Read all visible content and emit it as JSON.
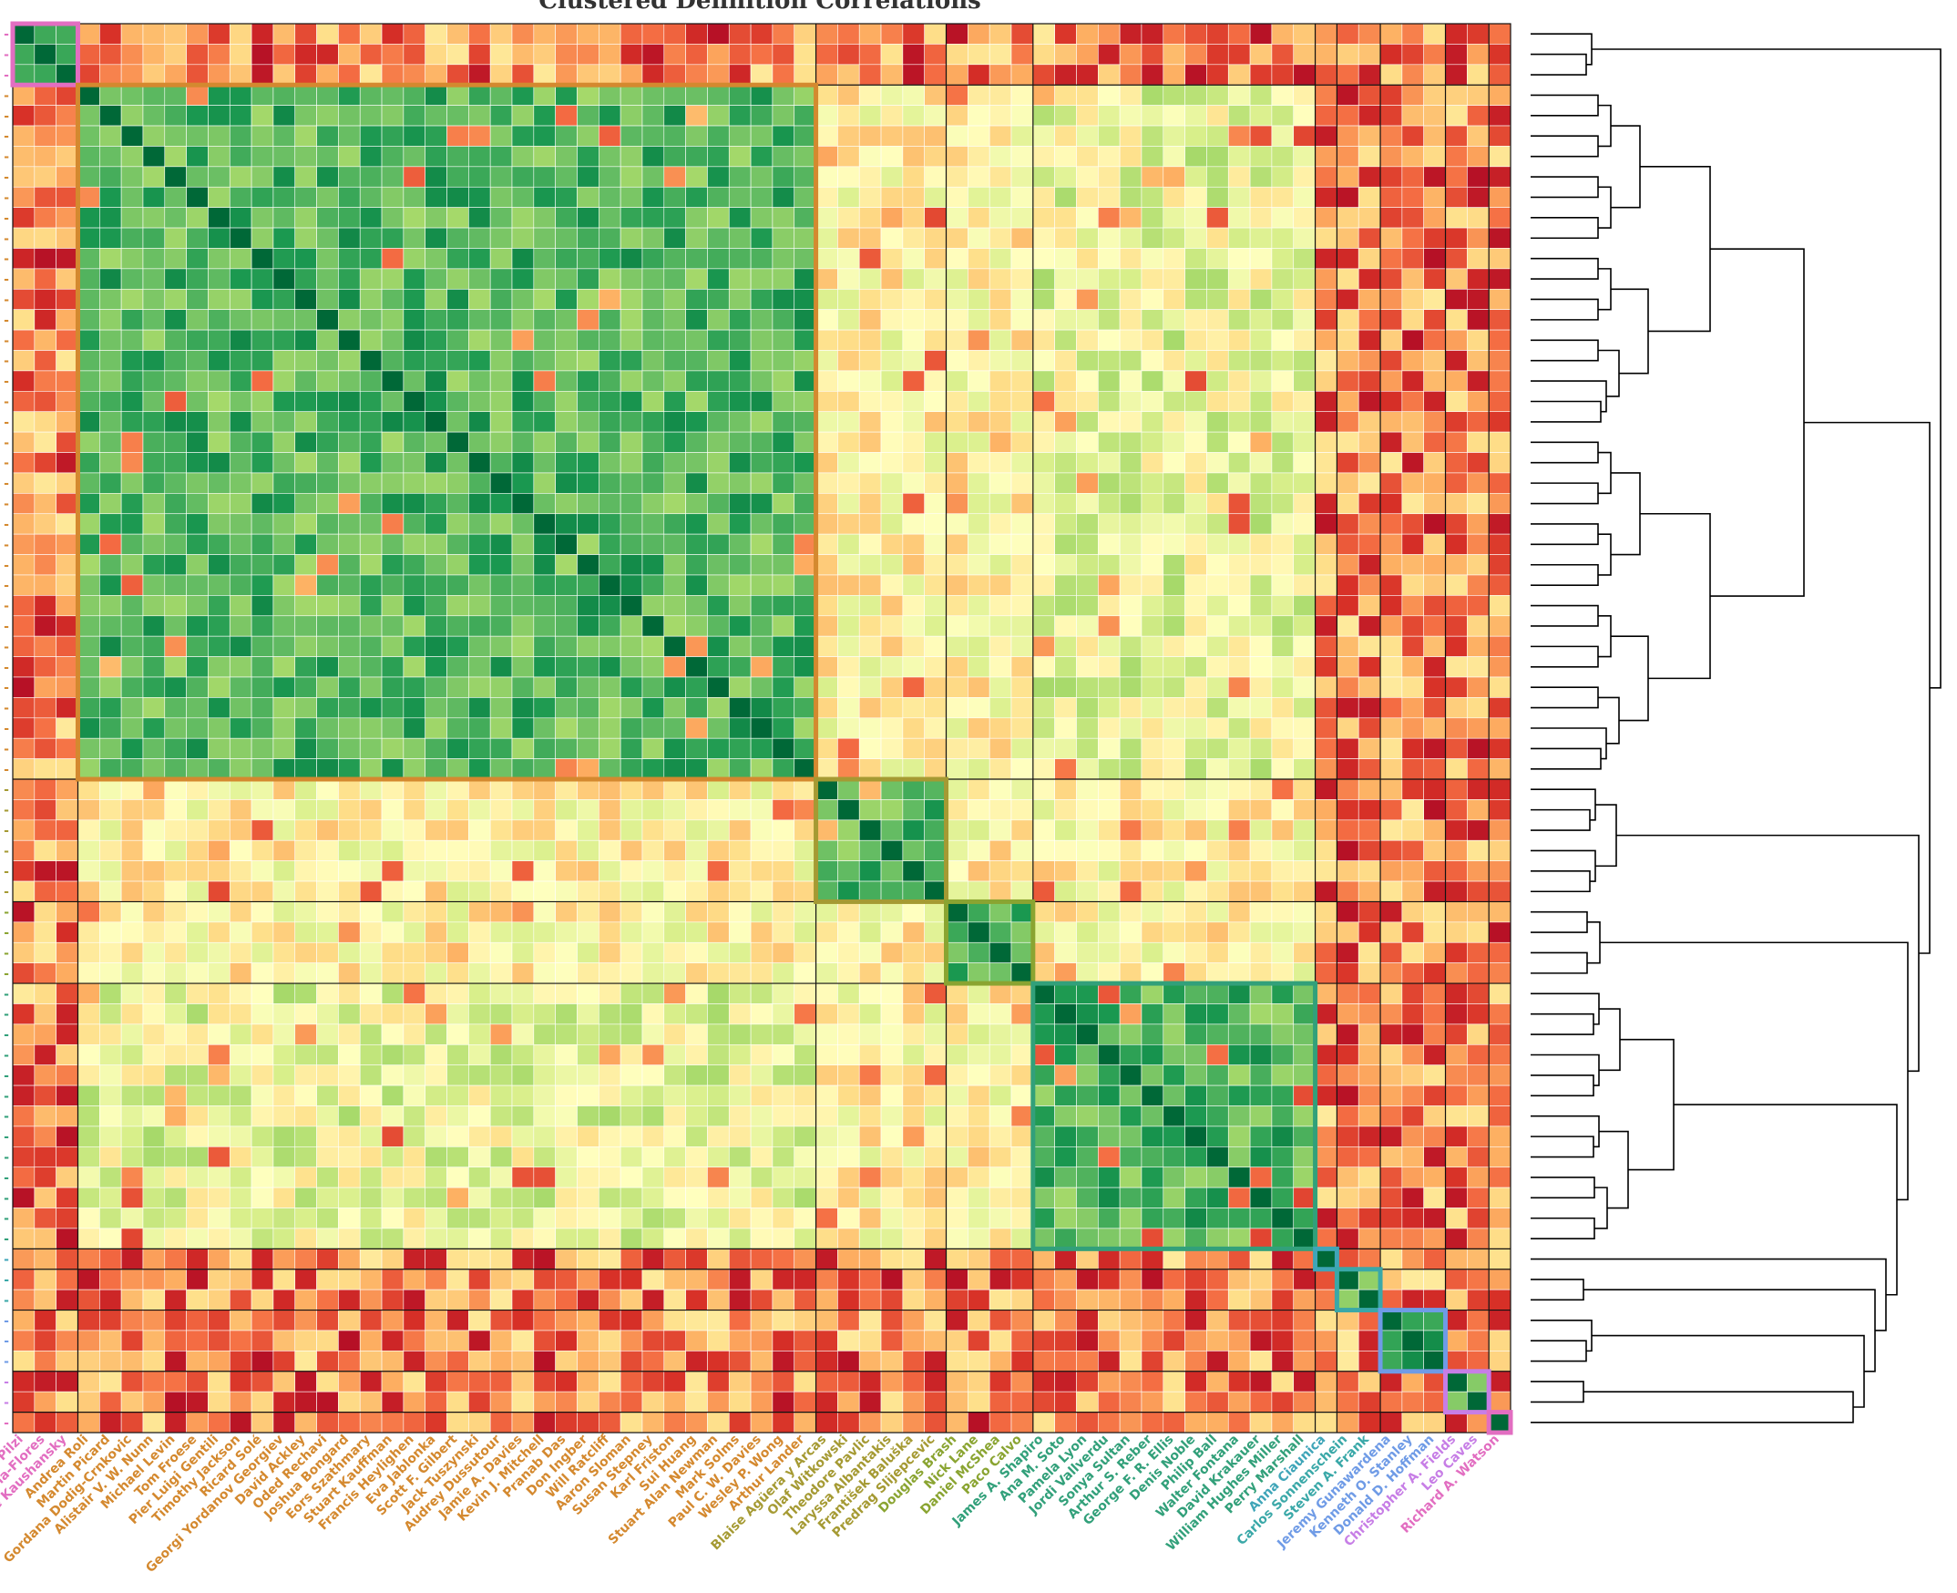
{
  "chart_data": {
    "type": "heatmap",
    "title": "Clustered Definition Correlations",
    "colormap": "RdYlGn",
    "clusters": [
      {
        "name": "cluster-1",
        "color": "#e26ec1",
        "members": [
          "Stefano Pilzi",
          "Julian Chela-Flores",
          "Lee Kaushansky"
        ]
      },
      {
        "name": "cluster-2",
        "color": "#d4892f",
        "members": [
          "Andrea Roli",
          "Martin Picard",
          "Gordana Dodig-Crnkovic",
          "Alistair V. W. Nunn",
          "Michael Levin",
          "Tom Froese",
          "Pier Luigi Gentili",
          "Timothy Jackson",
          "Ricard Solé",
          "Georgi Yordanov Georgiev",
          "David Ackley",
          "Oded Rechavi",
          "Joshua Bongard",
          "Eors Szathmary",
          "Stuart Kauffman",
          "Francis Heylighen",
          "Eva Jablonka",
          "Scott F. Gilbert",
          "Jack Tuszynski",
          "Audrey Dussutour",
          "Jamie A. Davies",
          "Kevin J. Mitchell",
          "Pranab Das",
          "Don Ingber",
          "Will Ratcliff",
          "Aaron Sloman",
          "Susan Stepney",
          "Karl Friston",
          "Sui Huang",
          "Stuart Alan Newman",
          "Mark Solms",
          "Paul C. W. Davies",
          "Wesley P. Wong",
          "Arthur Lander"
        ]
      },
      {
        "name": "cluster-3",
        "color": "#a59a33",
        "members": [
          "Blaise Agüera y Arcas",
          "Olaf Witkowski",
          "Theodore Pavlic",
          "Laryssa Albantakis",
          "František Baluška",
          "Predrag Slijepcevic"
        ]
      },
      {
        "name": "cluster-4",
        "color": "#8aa431",
        "members": [
          "Douglas Brash",
          "Nick Lane",
          "Daniel McShea",
          "Paco Calvo"
        ]
      },
      {
        "name": "cluster-5",
        "color": "#32a07a",
        "members": [
          "James A. Shapiro",
          "Ana M. Soto",
          "Pamela Lyon",
          "Jordi Vallverdu",
          "Sonya Sultan",
          "Arthur S. Reber",
          "George F. R. Ellis",
          "Denis Noble",
          "Philip Ball",
          "Walter Fontana",
          "David Krakauer",
          "William Hughes Miller",
          "Perry Marshall"
        ]
      },
      {
        "name": "cluster-6",
        "color": "#3fa5b8",
        "members": [
          "Anna Ciaunica"
        ]
      },
      {
        "name": "cluster-7",
        "color": "#3aa8a8",
        "members": [
          "Carlos Sonnenschein",
          "Steven A. Frank"
        ]
      },
      {
        "name": "cluster-8",
        "color": "#6f9be6",
        "members": [
          "Jeremy Gunawardena",
          "Kenneth O. Stanley",
          "Donald D. Hoffman"
        ]
      },
      {
        "name": "cluster-9",
        "color": "#c77ee6",
        "members": [
          "Christopher A. Fields",
          "Leo Caves"
        ]
      },
      {
        "name": "cluster-10",
        "color": "#e26ec1",
        "members": [
          "Richard A. Watson"
        ]
      }
    ],
    "xlabel": "",
    "ylabel": "",
    "legend": "none",
    "grid": true,
    "dendrogram": "right",
    "note_values": "correlation values estimated from colour; diagonal = 1"
  }
}
